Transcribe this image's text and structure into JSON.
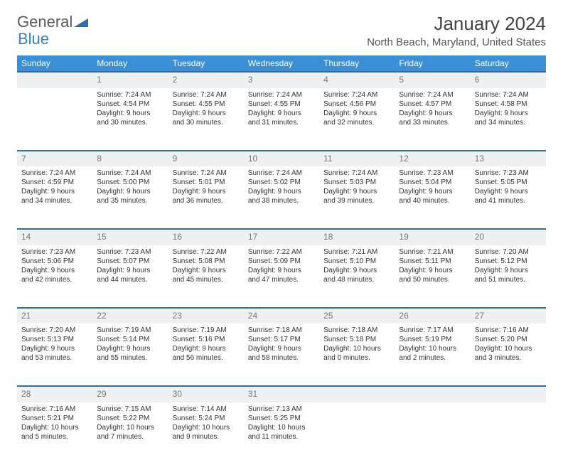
{
  "logo": {
    "text_general": "General",
    "text_blue": "Blue",
    "icon_color": "#2f6fa8"
  },
  "title": "January 2024",
  "location": "North Beach, Maryland, United States",
  "header_bg": "#3b8fd4",
  "daynum_bg": "#eef0f2",
  "daynum_border": "#2f6fa8",
  "days_of_week": [
    "Sunday",
    "Monday",
    "Tuesday",
    "Wednesday",
    "Thursday",
    "Friday",
    "Saturday"
  ],
  "weeks": [
    {
      "nums": [
        "",
        "1",
        "2",
        "3",
        "4",
        "5",
        "6"
      ],
      "cells": [
        {},
        {
          "sunrise": "Sunrise: 7:24 AM",
          "sunset": "Sunset: 4:54 PM",
          "daylight1": "Daylight: 9 hours",
          "daylight2": "and 30 minutes."
        },
        {
          "sunrise": "Sunrise: 7:24 AM",
          "sunset": "Sunset: 4:55 PM",
          "daylight1": "Daylight: 9 hours",
          "daylight2": "and 30 minutes."
        },
        {
          "sunrise": "Sunrise: 7:24 AM",
          "sunset": "Sunset: 4:55 PM",
          "daylight1": "Daylight: 9 hours",
          "daylight2": "and 31 minutes."
        },
        {
          "sunrise": "Sunrise: 7:24 AM",
          "sunset": "Sunset: 4:56 PM",
          "daylight1": "Daylight: 9 hours",
          "daylight2": "and 32 minutes."
        },
        {
          "sunrise": "Sunrise: 7:24 AM",
          "sunset": "Sunset: 4:57 PM",
          "daylight1": "Daylight: 9 hours",
          "daylight2": "and 33 minutes."
        },
        {
          "sunrise": "Sunrise: 7:24 AM",
          "sunset": "Sunset: 4:58 PM",
          "daylight1": "Daylight: 9 hours",
          "daylight2": "and 34 minutes."
        }
      ]
    },
    {
      "nums": [
        "7",
        "8",
        "9",
        "10",
        "11",
        "12",
        "13"
      ],
      "cells": [
        {
          "sunrise": "Sunrise: 7:24 AM",
          "sunset": "Sunset: 4:59 PM",
          "daylight1": "Daylight: 9 hours",
          "daylight2": "and 34 minutes."
        },
        {
          "sunrise": "Sunrise: 7:24 AM",
          "sunset": "Sunset: 5:00 PM",
          "daylight1": "Daylight: 9 hours",
          "daylight2": "and 35 minutes."
        },
        {
          "sunrise": "Sunrise: 7:24 AM",
          "sunset": "Sunset: 5:01 PM",
          "daylight1": "Daylight: 9 hours",
          "daylight2": "and 36 minutes."
        },
        {
          "sunrise": "Sunrise: 7:24 AM",
          "sunset": "Sunset: 5:02 PM",
          "daylight1": "Daylight: 9 hours",
          "daylight2": "and 38 minutes."
        },
        {
          "sunrise": "Sunrise: 7:24 AM",
          "sunset": "Sunset: 5:03 PM",
          "daylight1": "Daylight: 9 hours",
          "daylight2": "and 39 minutes."
        },
        {
          "sunrise": "Sunrise: 7:23 AM",
          "sunset": "Sunset: 5:04 PM",
          "daylight1": "Daylight: 9 hours",
          "daylight2": "and 40 minutes."
        },
        {
          "sunrise": "Sunrise: 7:23 AM",
          "sunset": "Sunset: 5:05 PM",
          "daylight1": "Daylight: 9 hours",
          "daylight2": "and 41 minutes."
        }
      ]
    },
    {
      "nums": [
        "14",
        "15",
        "16",
        "17",
        "18",
        "19",
        "20"
      ],
      "cells": [
        {
          "sunrise": "Sunrise: 7:23 AM",
          "sunset": "Sunset: 5:06 PM",
          "daylight1": "Daylight: 9 hours",
          "daylight2": "and 42 minutes."
        },
        {
          "sunrise": "Sunrise: 7:23 AM",
          "sunset": "Sunset: 5:07 PM",
          "daylight1": "Daylight: 9 hours",
          "daylight2": "and 44 minutes."
        },
        {
          "sunrise": "Sunrise: 7:22 AM",
          "sunset": "Sunset: 5:08 PM",
          "daylight1": "Daylight: 9 hours",
          "daylight2": "and 45 minutes."
        },
        {
          "sunrise": "Sunrise: 7:22 AM",
          "sunset": "Sunset: 5:09 PM",
          "daylight1": "Daylight: 9 hours",
          "daylight2": "and 47 minutes."
        },
        {
          "sunrise": "Sunrise: 7:21 AM",
          "sunset": "Sunset: 5:10 PM",
          "daylight1": "Daylight: 9 hours",
          "daylight2": "and 48 minutes."
        },
        {
          "sunrise": "Sunrise: 7:21 AM",
          "sunset": "Sunset: 5:11 PM",
          "daylight1": "Daylight: 9 hours",
          "daylight2": "and 50 minutes."
        },
        {
          "sunrise": "Sunrise: 7:20 AM",
          "sunset": "Sunset: 5:12 PM",
          "daylight1": "Daylight: 9 hours",
          "daylight2": "and 51 minutes."
        }
      ]
    },
    {
      "nums": [
        "21",
        "22",
        "23",
        "24",
        "25",
        "26",
        "27"
      ],
      "cells": [
        {
          "sunrise": "Sunrise: 7:20 AM",
          "sunset": "Sunset: 5:13 PM",
          "daylight1": "Daylight: 9 hours",
          "daylight2": "and 53 minutes."
        },
        {
          "sunrise": "Sunrise: 7:19 AM",
          "sunset": "Sunset: 5:14 PM",
          "daylight1": "Daylight: 9 hours",
          "daylight2": "and 55 minutes."
        },
        {
          "sunrise": "Sunrise: 7:19 AM",
          "sunset": "Sunset: 5:16 PM",
          "daylight1": "Daylight: 9 hours",
          "daylight2": "and 56 minutes."
        },
        {
          "sunrise": "Sunrise: 7:18 AM",
          "sunset": "Sunset: 5:17 PM",
          "daylight1": "Daylight: 9 hours",
          "daylight2": "and 58 minutes."
        },
        {
          "sunrise": "Sunrise: 7:18 AM",
          "sunset": "Sunset: 5:18 PM",
          "daylight1": "Daylight: 10 hours",
          "daylight2": "and 0 minutes."
        },
        {
          "sunrise": "Sunrise: 7:17 AM",
          "sunset": "Sunset: 5:19 PM",
          "daylight1": "Daylight: 10 hours",
          "daylight2": "and 2 minutes."
        },
        {
          "sunrise": "Sunrise: 7:16 AM",
          "sunset": "Sunset: 5:20 PM",
          "daylight1": "Daylight: 10 hours",
          "daylight2": "and 3 minutes."
        }
      ]
    },
    {
      "nums": [
        "28",
        "29",
        "30",
        "31",
        "",
        "",
        ""
      ],
      "cells": [
        {
          "sunrise": "Sunrise: 7:16 AM",
          "sunset": "Sunset: 5:21 PM",
          "daylight1": "Daylight: 10 hours",
          "daylight2": "and 5 minutes."
        },
        {
          "sunrise": "Sunrise: 7:15 AM",
          "sunset": "Sunset: 5:22 PM",
          "daylight1": "Daylight: 10 hours",
          "daylight2": "and 7 minutes."
        },
        {
          "sunrise": "Sunrise: 7:14 AM",
          "sunset": "Sunset: 5:24 PM",
          "daylight1": "Daylight: 10 hours",
          "daylight2": "and 9 minutes."
        },
        {
          "sunrise": "Sunrise: 7:13 AM",
          "sunset": "Sunset: 5:25 PM",
          "daylight1": "Daylight: 10 hours",
          "daylight2": "and 11 minutes."
        },
        {},
        {},
        {}
      ]
    }
  ]
}
